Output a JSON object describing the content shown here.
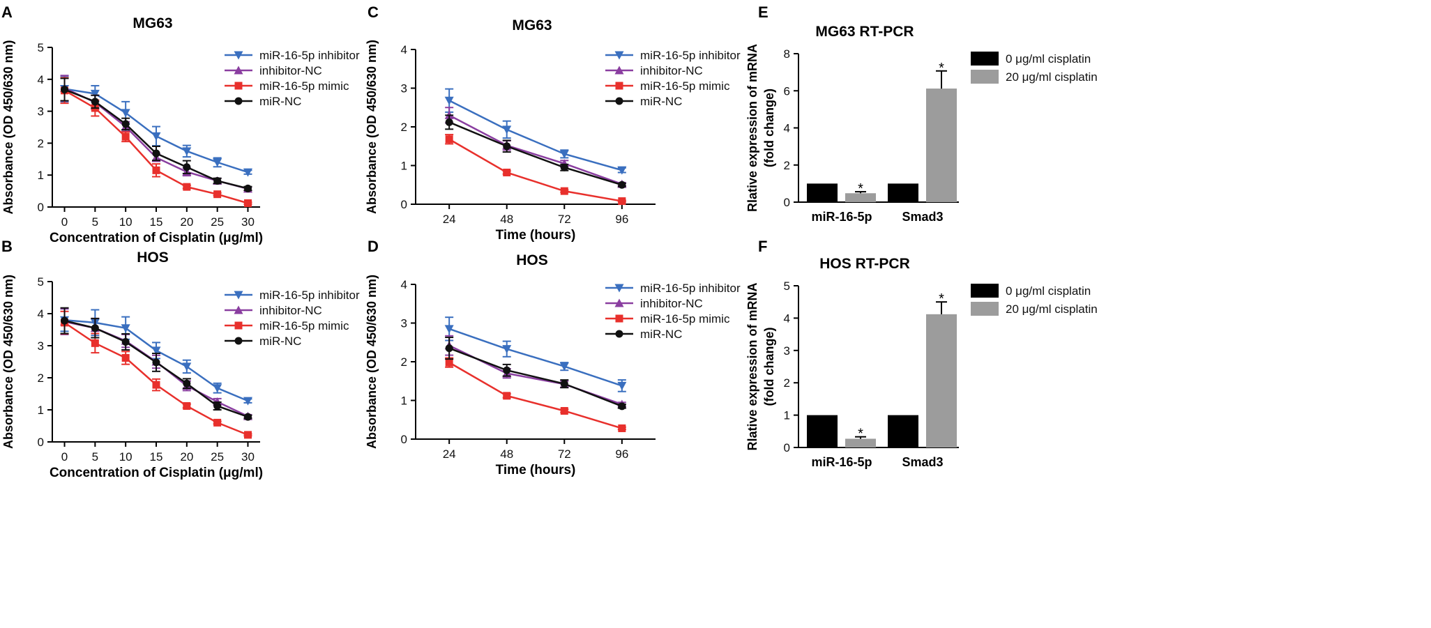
{
  "colors": {
    "inhibitor": "#3a6fbf",
    "inhibitor_nc": "#8a3ea0",
    "mimic": "#e8302c",
    "mir_nc": "#111111",
    "bar_control": "#000000",
    "bar_treated": "#9c9c9c"
  },
  "chart_data": [
    {
      "panel": "A",
      "type": "line",
      "title": "MG63",
      "xlabel": "Concentration of Cisplatin (μg/ml)",
      "ylabel": "Absorbance (OD 450/630 nm)",
      "x": [
        0,
        5,
        10,
        15,
        20,
        25,
        30
      ],
      "xticks": [
        "0",
        "5",
        "10",
        "15",
        "20",
        "25",
        "30"
      ],
      "xlim": [
        -2,
        32
      ],
      "ylim": [
        0,
        5
      ],
      "yticks": [
        "0",
        "1",
        "2",
        "3",
        "4",
        "5"
      ],
      "legend": "top-right",
      "series": [
        {
          "name": "miR-16-5p inhibitor",
          "marker": "triangle-down",
          "colorKey": "inhibitor",
          "values": [
            3.7,
            3.55,
            2.95,
            2.22,
            1.75,
            1.4,
            1.09
          ],
          "errors": [
            0.4,
            0.25,
            0.35,
            0.3,
            0.18,
            0.14,
            0.06
          ]
        },
        {
          "name": "inhibitor-NC",
          "marker": "triangle-up",
          "colorKey": "inhibitor_nc",
          "values": [
            3.72,
            3.28,
            2.52,
            1.55,
            1.1,
            0.82,
            0.57
          ],
          "errors": [
            0.4,
            0.22,
            0.15,
            0.12,
            0.12,
            0.08,
            0.05
          ]
        },
        {
          "name": "miR-16-5p mimic",
          "marker": "square",
          "colorKey": "mimic",
          "values": [
            3.65,
            3.1,
            2.2,
            1.15,
            0.63,
            0.4,
            0.12
          ],
          "errors": [
            0.4,
            0.25,
            0.15,
            0.2,
            0.05,
            0.04,
            0.03
          ]
        },
        {
          "name": "miR-NC",
          "marker": "circle",
          "colorKey": "mir_nc",
          "values": [
            3.68,
            3.3,
            2.6,
            1.68,
            1.25,
            0.82,
            0.58
          ],
          "errors": [
            0.35,
            0.2,
            0.18,
            0.22,
            0.2,
            0.08,
            0.06
          ]
        }
      ]
    },
    {
      "panel": "B",
      "type": "line",
      "title": "HOS",
      "xlabel": "Concentration of Cisplatin (μg/ml)",
      "ylabel": "Absorbance (OD 450/630 nm)",
      "x": [
        0,
        5,
        10,
        15,
        20,
        25,
        30
      ],
      "xticks": [
        "0",
        "5",
        "10",
        "15",
        "20",
        "25",
        "30"
      ],
      "xlim": [
        -2,
        32
      ],
      "ylim": [
        0,
        5
      ],
      "yticks": [
        "0",
        "1",
        "2",
        "3",
        "4",
        "5"
      ],
      "legend": "top-right",
      "series": [
        {
          "name": "miR-16-5p inhibitor",
          "marker": "triangle-down",
          "colorKey": "inhibitor",
          "values": [
            3.8,
            3.72,
            3.55,
            2.85,
            2.35,
            1.68,
            1.28
          ],
          "errors": [
            0.35,
            0.4,
            0.35,
            0.25,
            0.2,
            0.15,
            0.06
          ]
        },
        {
          "name": "inhibitor-NC",
          "marker": "triangle-up",
          "colorKey": "inhibitor_nc",
          "values": [
            3.75,
            3.55,
            3.15,
            2.5,
            1.75,
            1.25,
            0.8
          ],
          "errors": [
            0.4,
            0.3,
            0.2,
            0.2,
            0.15,
            0.1,
            0.05
          ]
        },
        {
          "name": "miR-16-5p mimic",
          "marker": "square",
          "colorKey": "mimic",
          "values": [
            3.72,
            3.08,
            2.62,
            1.78,
            1.12,
            0.6,
            0.22
          ],
          "errors": [
            0.35,
            0.3,
            0.2,
            0.18,
            0.06,
            0.04,
            0.03
          ]
        },
        {
          "name": "miR-NC",
          "marker": "circle",
          "colorKey": "mir_nc",
          "values": [
            3.78,
            3.55,
            3.12,
            2.48,
            1.82,
            1.12,
            0.78
          ],
          "errors": [
            0.4,
            0.3,
            0.25,
            0.28,
            0.15,
            0.12,
            0.05
          ]
        }
      ]
    },
    {
      "panel": "C",
      "type": "line",
      "title": "MG63",
      "xlabel": "Time (hours)",
      "ylabel": "Absorbance (OD 450/630 nm)",
      "x": [
        24,
        48,
        72,
        96
      ],
      "xticks": [
        "24",
        "48",
        "72",
        "96"
      ],
      "xlim": [
        10,
        110
      ],
      "ylim": [
        0,
        4
      ],
      "yticks": [
        "0",
        "1",
        "2",
        "3",
        "4"
      ],
      "legend": "top-right",
      "series": [
        {
          "name": "miR-16-5p inhibitor",
          "marker": "triangle-down",
          "colorKey": "inhibitor",
          "values": [
            2.68,
            1.93,
            1.3,
            0.88
          ],
          "errors": [
            0.3,
            0.22,
            0.1,
            0.06
          ]
        },
        {
          "name": "inhibitor-NC",
          "marker": "triangle-up",
          "colorKey": "inhibitor_nc",
          "values": [
            2.3,
            1.52,
            1.05,
            0.52
          ],
          "errors": [
            0.2,
            0.12,
            0.08,
            0.04
          ]
        },
        {
          "name": "miR-16-5p mimic",
          "marker": "square",
          "colorKey": "mimic",
          "values": [
            1.68,
            0.82,
            0.34,
            0.08
          ],
          "errors": [
            0.12,
            0.04,
            0.03,
            0.02
          ]
        },
        {
          "name": "miR-NC",
          "marker": "circle",
          "colorKey": "mir_nc",
          "values": [
            2.12,
            1.5,
            0.95,
            0.5
          ],
          "errors": [
            0.18,
            0.15,
            0.08,
            0.04
          ]
        }
      ]
    },
    {
      "panel": "D",
      "type": "line",
      "title": "HOS",
      "xlabel": "Time (hours)",
      "ylabel": "Absorbance (OD 450/630 nm)",
      "x": [
        24,
        48,
        72,
        96
      ],
      "xticks": [
        "24",
        "48",
        "72",
        "96"
      ],
      "xlim": [
        10,
        110
      ],
      "ylim": [
        0,
        4
      ],
      "yticks": [
        "0",
        "1",
        "2",
        "3",
        "4"
      ],
      "legend": "top-right",
      "series": [
        {
          "name": "miR-16-5p inhibitor",
          "marker": "triangle-down",
          "colorKey": "inhibitor",
          "values": [
            2.85,
            2.33,
            1.88,
            1.38
          ],
          "errors": [
            0.3,
            0.2,
            0.1,
            0.15
          ]
        },
        {
          "name": "inhibitor-NC",
          "marker": "triangle-up",
          "colorKey": "inhibitor_nc",
          "values": [
            2.42,
            1.7,
            1.42,
            0.9
          ],
          "errors": [
            0.25,
            0.12,
            0.08,
            0.05
          ]
        },
        {
          "name": "miR-16-5p mimic",
          "marker": "square",
          "colorKey": "mimic",
          "values": [
            1.98,
            1.12,
            0.73,
            0.28
          ],
          "errors": [
            0.12,
            0.05,
            0.04,
            0.03
          ]
        },
        {
          "name": "miR-NC",
          "marker": "circle",
          "colorKey": "mir_nc",
          "values": [
            2.35,
            1.78,
            1.43,
            0.85
          ],
          "errors": [
            0.28,
            0.15,
            0.1,
            0.05
          ]
        }
      ]
    },
    {
      "panel": "E",
      "type": "bar",
      "title": "MG63 RT-PCR",
      "xlabel": "",
      "ylabel": [
        "Rlative expression of mRNA",
        "(fold change)"
      ],
      "categories": [
        "miR-16-5p",
        "Smad3"
      ],
      "ylim": [
        0,
        8
      ],
      "yticks": [
        "0",
        "2",
        "4",
        "6",
        "8"
      ],
      "legend": "top-right",
      "significance": "*",
      "series": [
        {
          "name": "0 μg/ml cisplatin",
          "colorKey": "bar_control",
          "values": [
            1,
            1
          ],
          "errors": [
            0,
            0
          ],
          "stars": [
            false,
            false
          ]
        },
        {
          "name": "20 μg/ml cisplatin",
          "colorKey": "bar_treated",
          "values": [
            0.48,
            6.12
          ],
          "errors": [
            0.08,
            0.95
          ],
          "stars": [
            true,
            true
          ]
        }
      ]
    },
    {
      "panel": "F",
      "type": "bar",
      "title": "HOS RT-PCR",
      "xlabel": "",
      "ylabel": [
        "Rlative expression of mRNA",
        "(fold change)"
      ],
      "categories": [
        "miR-16-5p",
        "Smad3"
      ],
      "ylim": [
        0,
        5
      ],
      "yticks": [
        "0",
        "1",
        "2",
        "3",
        "4",
        "5"
      ],
      "legend": "top-right",
      "significance": "*",
      "series": [
        {
          "name": "0 μg/ml cisplatin",
          "colorKey": "bar_control",
          "values": [
            1,
            1
          ],
          "errors": [
            0,
            0
          ],
          "stars": [
            false,
            false
          ]
        },
        {
          "name": "20 μg/ml cisplatin",
          "colorKey": "bar_treated",
          "values": [
            0.27,
            4.12
          ],
          "errors": [
            0.06,
            0.38
          ],
          "stars": [
            true,
            true
          ]
        }
      ]
    }
  ]
}
